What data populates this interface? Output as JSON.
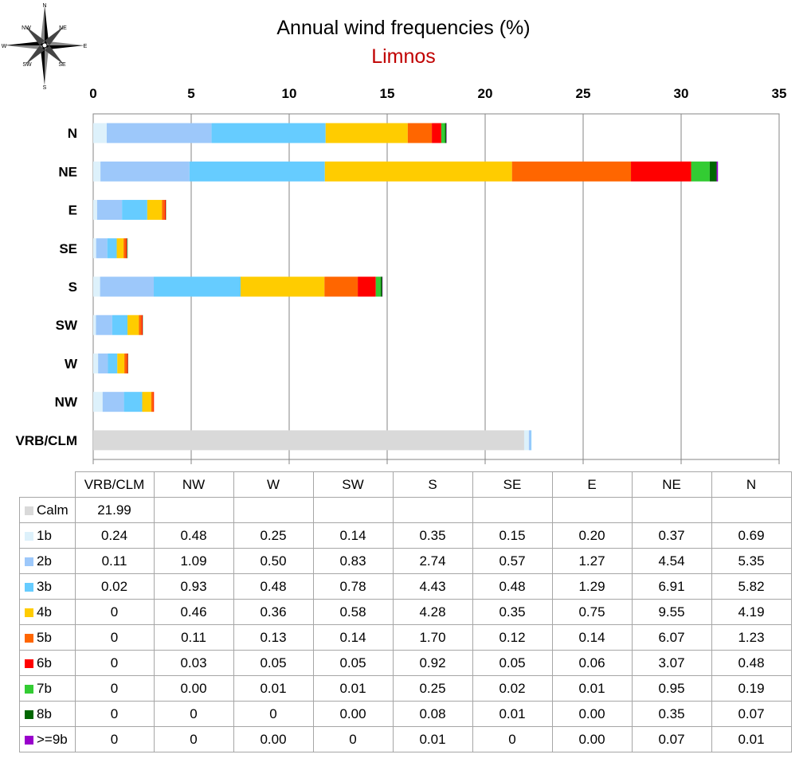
{
  "compass": {
    "labels": [
      "N",
      "NE",
      "E",
      "SE",
      "S",
      "SW",
      "W",
      "NW"
    ],
    "icon": "wind-rose-icon"
  },
  "chart_data": {
    "type": "bar",
    "orientation": "horizontal",
    "stacked": true,
    "title": "Annual wind frequencies (%)",
    "subtitle": "Limnos",
    "xlim": [
      0,
      35
    ],
    "xticks": [
      0,
      5,
      10,
      15,
      20,
      25,
      30,
      35
    ],
    "x_axis_position": "top",
    "grid": true,
    "categories": [
      "N",
      "NE",
      "E",
      "SE",
      "S",
      "SW",
      "W",
      "NW",
      "VRB/CLM"
    ],
    "series": [
      {
        "name": "Calm",
        "color": "#d9d9d9",
        "values": [
          0,
          0,
          0,
          0,
          0,
          0,
          0,
          0,
          21.99
        ]
      },
      {
        "name": "1b",
        "color": "#ddf1fb",
        "values": [
          0.69,
          0.37,
          0.2,
          0.15,
          0.35,
          0.14,
          0.25,
          0.48,
          0.24
        ]
      },
      {
        "name": "2b",
        "color": "#9dc8fa",
        "values": [
          5.35,
          4.54,
          1.27,
          0.57,
          2.74,
          0.83,
          0.5,
          1.09,
          0.11
        ]
      },
      {
        "name": "3b",
        "color": "#66ccff",
        "values": [
          5.82,
          6.91,
          1.29,
          0.48,
          4.43,
          0.78,
          0.48,
          0.93,
          0.02
        ]
      },
      {
        "name": "4b",
        "color": "#ffcc00",
        "values": [
          4.19,
          9.55,
          0.75,
          0.35,
          4.28,
          0.58,
          0.36,
          0.46,
          0
        ]
      },
      {
        "name": "5b",
        "color": "#ff6600",
        "values": [
          1.23,
          6.07,
          0.14,
          0.12,
          1.7,
          0.14,
          0.13,
          0.11,
          0
        ]
      },
      {
        "name": "6b",
        "color": "#ff0000",
        "values": [
          0.48,
          3.07,
          0.06,
          0.05,
          0.92,
          0.05,
          0.05,
          0.03,
          0
        ]
      },
      {
        "name": "7b",
        "color": "#33cc33",
        "values": [
          0.19,
          0.95,
          0.01,
          0.02,
          0.25,
          0.01,
          0.01,
          0.0,
          0
        ]
      },
      {
        "name": "8b",
        "color": "#006600",
        "values": [
          0.07,
          0.35,
          0.0,
          0.01,
          0.08,
          0.0,
          0,
          0,
          0
        ]
      },
      {
        "name": ">=9b",
        "color": "#9900cc",
        "values": [
          0.01,
          0.07,
          0.0,
          0,
          0.01,
          0,
          0.0,
          0,
          0
        ]
      }
    ]
  },
  "table": {
    "columns": [
      "VRB/CLM",
      "NW",
      "W",
      "SW",
      "S",
      "SE",
      "E",
      "NE",
      "N"
    ],
    "rows": [
      {
        "label": "Calm",
        "color": "#d9d9d9",
        "cells": [
          "21.99",
          "",
          "",
          "",
          "",
          "",
          "",
          "",
          ""
        ]
      },
      {
        "label": "1b",
        "color": "#ddf1fb",
        "cells": [
          "0.24",
          "0.48",
          "0.25",
          "0.14",
          "0.35",
          "0.15",
          "0.20",
          "0.37",
          "0.69"
        ]
      },
      {
        "label": "2b",
        "color": "#9dc8fa",
        "cells": [
          "0.11",
          "1.09",
          "0.50",
          "0.83",
          "2.74",
          "0.57",
          "1.27",
          "4.54",
          "5.35"
        ]
      },
      {
        "label": "3b",
        "color": "#66ccff",
        "cells": [
          "0.02",
          "0.93",
          "0.48",
          "0.78",
          "4.43",
          "0.48",
          "1.29",
          "6.91",
          "5.82"
        ]
      },
      {
        "label": "4b",
        "color": "#ffcc00",
        "cells": [
          "0",
          "0.46",
          "0.36",
          "0.58",
          "4.28",
          "0.35",
          "0.75",
          "9.55",
          "4.19"
        ]
      },
      {
        "label": "5b",
        "color": "#ff6600",
        "cells": [
          "0",
          "0.11",
          "0.13",
          "0.14",
          "1.70",
          "0.12",
          "0.14",
          "6.07",
          "1.23"
        ]
      },
      {
        "label": "6b",
        "color": "#ff0000",
        "cells": [
          "0",
          "0.03",
          "0.05",
          "0.05",
          "0.92",
          "0.05",
          "0.06",
          "3.07",
          "0.48"
        ]
      },
      {
        "label": "7b",
        "color": "#33cc33",
        "cells": [
          "0",
          "0.00",
          "0.01",
          "0.01",
          "0.25",
          "0.02",
          "0.01",
          "0.95",
          "0.19"
        ]
      },
      {
        "label": "8b",
        "color": "#006600",
        "cells": [
          "0",
          "0",
          "0",
          "0.00",
          "0.08",
          "0.01",
          "0.00",
          "0.35",
          "0.07"
        ]
      },
      {
        "label": ">=9b",
        "color": "#9900cc",
        "cells": [
          "0",
          "0",
          "0.00",
          "0",
          "0.01",
          "0",
          "0.00",
          "0.07",
          "0.01"
        ]
      }
    ]
  }
}
